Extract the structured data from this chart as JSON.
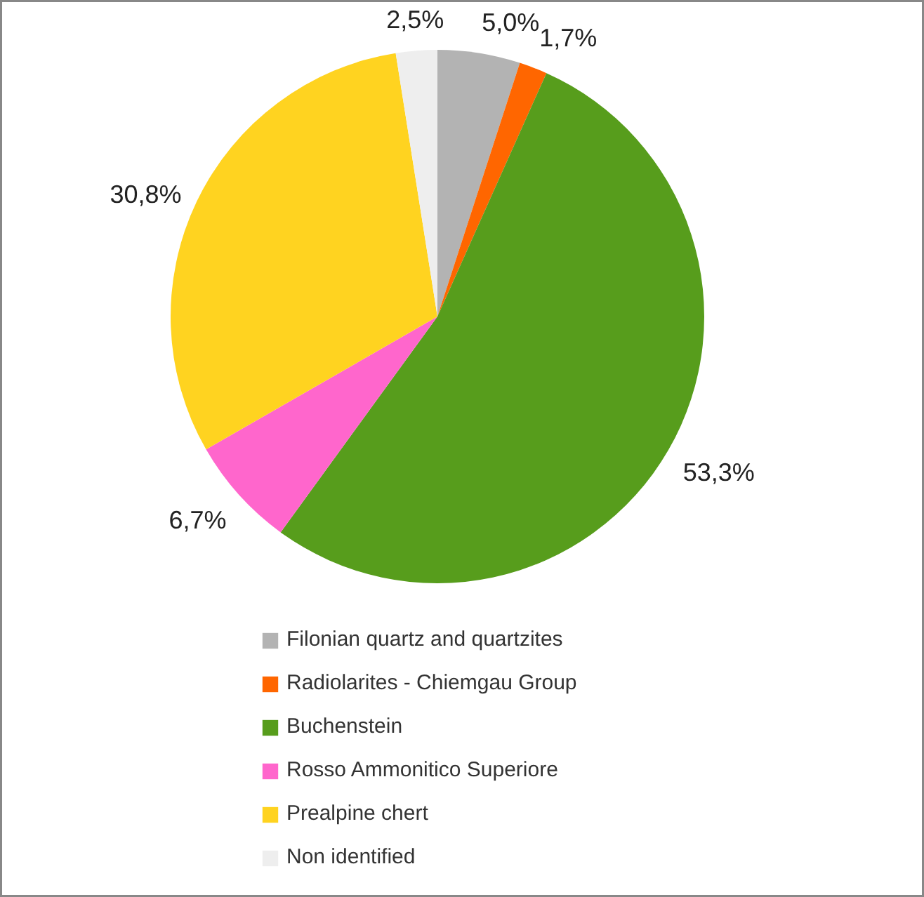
{
  "chart_data": {
    "type": "pie",
    "categories": [
      "Filonian quartz and quartzites",
      "Radiolarites - Chiemgau Group",
      "Buchenstein",
      "Rosso Ammonitico Superiore",
      "Prealpine chert",
      "Non identified"
    ],
    "values": [
      5.0,
      1.7,
      53.3,
      6.7,
      30.8,
      2.5
    ],
    "colors": [
      "#b3b3b3",
      "#ff6600",
      "#579d1c",
      "#ff66cc",
      "#ffd320",
      "#eeeeee"
    ],
    "value_labels": [
      "5,0%",
      "1,7%",
      "53,3%",
      "6,7%",
      "30,8%",
      "2,5%"
    ],
    "legend": "bottom"
  }
}
